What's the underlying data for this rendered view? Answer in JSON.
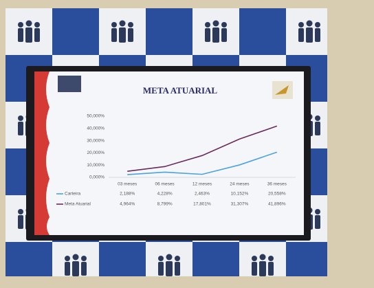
{
  "chart_data": {
    "type": "line",
    "title": "META ATUARIAL",
    "categories": [
      "03 meses",
      "06 meses",
      "12 meses",
      "24 meses",
      "36 meses"
    ],
    "series": [
      {
        "name": "Carteira",
        "color": "#4aa3df",
        "values": [
          2.188,
          4.228,
          2.463,
          10.152,
          20.558
        ],
        "value_labels": [
          "2,188%",
          "4,228%",
          "2,463%",
          "10,152%",
          "20,558%"
        ]
      },
      {
        "name": "Meta Atuarial",
        "color": "#6b2a5e",
        "values": [
          4.964,
          8.799,
          17.801,
          31.307,
          41.896
        ],
        "value_labels": [
          "4,964%",
          "8,799%",
          "17,801%",
          "31,307%",
          "41,896%"
        ]
      }
    ],
    "ylim": [
      0,
      50
    ],
    "yticks": [
      {
        "value": 0,
        "label": "0,000%"
      },
      {
        "value": 10,
        "label": "10,000%"
      },
      {
        "value": 20,
        "label": "20,000%"
      },
      {
        "value": 30,
        "label": "30,000%"
      },
      {
        "value": 40,
        "label": "40,000%"
      },
      {
        "value": 50,
        "label": "50,000%"
      }
    ]
  }
}
